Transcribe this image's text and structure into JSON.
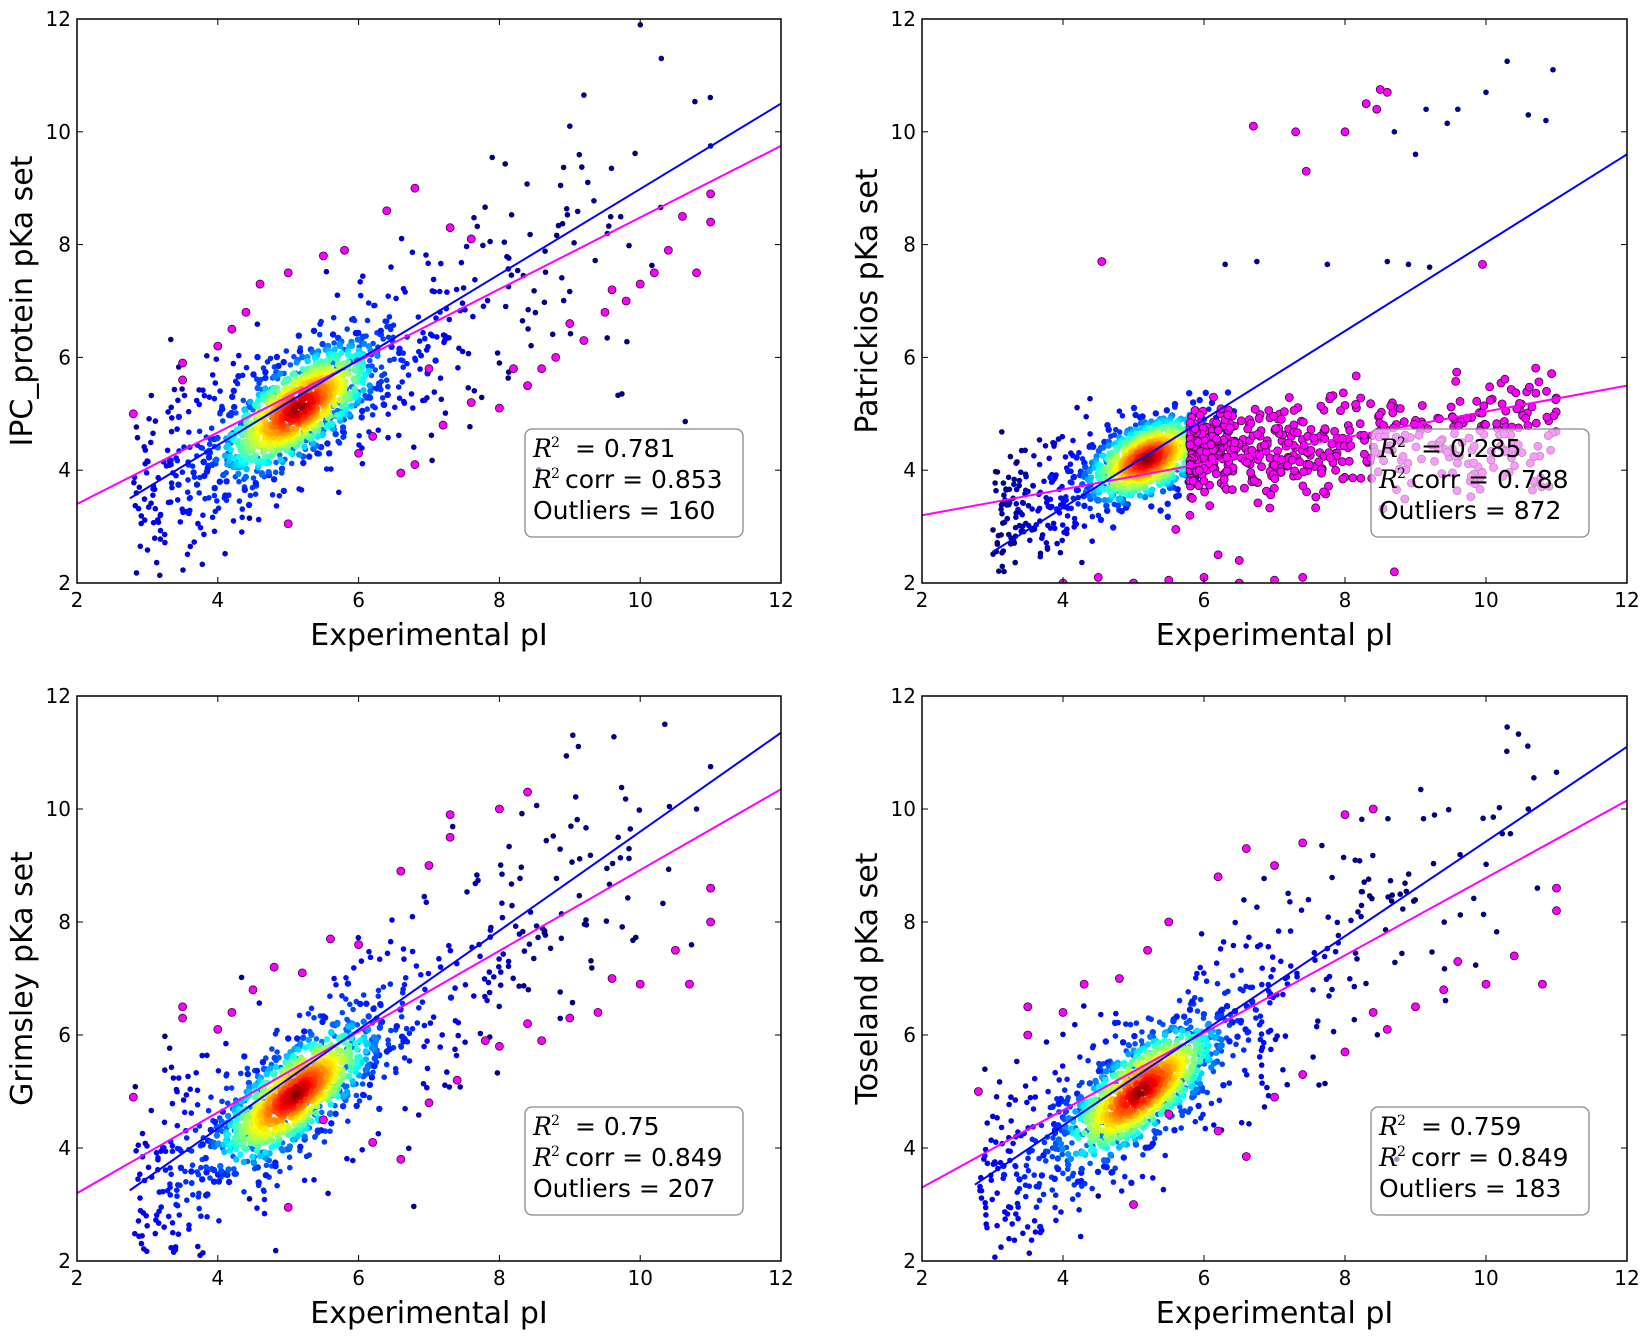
{
  "chart_data": [
    {
      "type": "scatter",
      "panel": "top-left",
      "title": "",
      "xlabel": "Experimental pI",
      "ylabel": "IPC_protein pKa set",
      "xlim": [
        2,
        12
      ],
      "ylim": [
        2,
        12
      ],
      "xticks": [
        "2",
        "4",
        "6",
        "8",
        "10",
        "12"
      ],
      "yticks": [
        "2",
        "4",
        "6",
        "8",
        "10",
        "12"
      ],
      "grid": false,
      "legend_placement": "bottom-right",
      "stats": {
        "r2_label": "= 0.781",
        "r2corr_label": "corr = 0.853",
        "outliers_label": "Outliers = 160"
      },
      "fit_all": {
        "color": "#ff00ff",
        "x": [
          2,
          12
        ],
        "y": [
          3.4,
          9.75
        ]
      },
      "fit_corr": {
        "color": "#0000ff",
        "x": [
          2.75,
          12
        ],
        "y": [
          3.5,
          10.5
        ]
      },
      "cloud": {
        "center": [
          5.15,
          5.1
        ],
        "slope": 0.72,
        "spread_core": 0.45,
        "spread_wide": 1.1,
        "n_core": 900,
        "n_wide": 600,
        "x_range": [
          2.8,
          11
        ]
      },
      "outliers": {
        "count": 160,
        "points": [
          [
            2.8,
            5.0
          ],
          [
            3.5,
            5.9
          ],
          [
            3.5,
            5.6
          ],
          [
            4.0,
            6.2
          ],
          [
            4.2,
            6.5
          ],
          [
            4.4,
            6.8
          ],
          [
            4.6,
            7.3
          ],
          [
            5.0,
            7.5
          ],
          [
            5.5,
            7.8
          ],
          [
            5.8,
            7.9
          ],
          [
            6.4,
            8.6
          ],
          [
            6.8,
            9.0
          ],
          [
            7.3,
            8.3
          ],
          [
            7.6,
            8.1
          ],
          [
            5.0,
            3.05
          ],
          [
            6.0,
            4.3
          ],
          [
            6.6,
            3.95
          ],
          [
            6.8,
            4.1
          ],
          [
            7.2,
            4.8
          ],
          [
            7.6,
            5.2
          ],
          [
            8.0,
            5.1
          ],
          [
            8.4,
            5.5
          ],
          [
            8.8,
            6.0
          ],
          [
            9.2,
            6.3
          ],
          [
            9.5,
            6.8
          ],
          [
            9.8,
            7.0
          ],
          [
            10.2,
            7.5
          ],
          [
            10.4,
            7.9
          ],
          [
            10.6,
            8.5
          ],
          [
            10.8,
            7.5
          ],
          [
            11.0,
            8.9
          ],
          [
            11.0,
            8.4
          ],
          [
            8.2,
            5.8
          ],
          [
            8.6,
            5.8
          ],
          [
            9.0,
            6.6
          ],
          [
            9.6,
            7.2
          ],
          [
            10.0,
            7.3
          ],
          [
            7.0,
            5.8
          ],
          [
            6.2,
            4.6
          ]
        ]
      },
      "corr_extremes": [
        [
          10.3,
          11.3
        ],
        [
          9.0,
          10.1
        ],
        [
          11.0,
          9.75
        ],
        [
          4.45,
          3.15
        ]
      ]
    },
    {
      "type": "scatter",
      "panel": "top-right",
      "title": "",
      "xlabel": "Experimental pI",
      "ylabel": "Patrickios pKa set",
      "xlim": [
        2,
        12
      ],
      "ylim": [
        2,
        12
      ],
      "xticks": [
        "2",
        "4",
        "6",
        "8",
        "10",
        "12"
      ],
      "yticks": [
        "2",
        "4",
        "6",
        "8",
        "10",
        "12"
      ],
      "grid": false,
      "legend_placement": "bottom-right",
      "stats": {
        "r2_label": "= 0.285",
        "r2corr_label": "corr = 0.788",
        "outliers_label": "Outliers = 872"
      },
      "fit_all": {
        "color": "#ff00ff",
        "x": [
          2,
          12
        ],
        "y": [
          3.2,
          5.5
        ]
      },
      "fit_corr": {
        "color": "#0000ff",
        "x": [
          3.0,
          12
        ],
        "y": [
          2.55,
          9.6
        ]
      },
      "cloud": {
        "center": [
          5.2,
          4.2
        ],
        "slope": 0.45,
        "spread_core": 0.35,
        "spread_wide": 0.75,
        "n_core": 900,
        "n_wide": 250,
        "x_range": [
          3.0,
          6.2
        ]
      },
      "outliers": {
        "count": 872,
        "band": {
          "x_range": [
            5.8,
            11
          ],
          "y_center": 4.3,
          "y_spread": 0.35
        },
        "points": [
          [
            4.55,
            7.7
          ],
          [
            6.7,
            10.1
          ],
          [
            7.3,
            10.0
          ],
          [
            7.45,
            9.3
          ],
          [
            8.0,
            10.0
          ],
          [
            8.3,
            10.5
          ],
          [
            8.45,
            10.4
          ],
          [
            8.5,
            10.75
          ],
          [
            8.6,
            10.7
          ],
          [
            9.95,
            7.65
          ],
          [
            8.7,
            2.2
          ],
          [
            4.0,
            2.0
          ],
          [
            4.5,
            2.1
          ],
          [
            5.0,
            2.0
          ],
          [
            5.5,
            2.05
          ],
          [
            6.0,
            2.1
          ],
          [
            6.5,
            2.0
          ],
          [
            7.0,
            2.05
          ],
          [
            7.4,
            2.1
          ],
          [
            5.6,
            2.95
          ],
          [
            5.8,
            3.2
          ],
          [
            6.2,
            2.5
          ],
          [
            6.5,
            2.4
          ]
        ]
      },
      "corr_extremes": [
        [
          10.3,
          11.25
        ],
        [
          10.95,
          11.1
        ],
        [
          10.85,
          10.2
        ],
        [
          10.6,
          10.3
        ],
        [
          10.0,
          10.7
        ],
        [
          9.6,
          10.4
        ],
        [
          9.15,
          10.4
        ],
        [
          9.45,
          10.15
        ],
        [
          9.0,
          9.6
        ],
        [
          8.7,
          10.0
        ],
        [
          6.3,
          7.65
        ],
        [
          6.75,
          7.7
        ],
        [
          7.75,
          7.65
        ],
        [
          8.6,
          7.7
        ],
        [
          9.2,
          7.6
        ],
        [
          8.9,
          7.65
        ]
      ]
    },
    {
      "type": "scatter",
      "panel": "bottom-left",
      "title": "",
      "xlabel": "Experimental pI",
      "ylabel": "Grimsley pKa set",
      "xlim": [
        2,
        12
      ],
      "ylim": [
        2,
        12
      ],
      "xticks": [
        "2",
        "4",
        "6",
        "8",
        "10",
        "12"
      ],
      "yticks": [
        "2",
        "4",
        "6",
        "8",
        "10",
        "12"
      ],
      "grid": false,
      "legend_placement": "bottom-right",
      "stats": {
        "r2_label": "= 0.75",
        "r2corr_label": "corr = 0.849",
        "outliers_label": "Outliers = 207"
      },
      "fit_all": {
        "color": "#ff00ff",
        "x": [
          2,
          12
        ],
        "y": [
          3.2,
          10.35
        ]
      },
      "fit_corr": {
        "color": "#0000ff",
        "x": [
          2.75,
          12
        ],
        "y": [
          3.25,
          11.35
        ]
      },
      "cloud": {
        "center": [
          5.1,
          4.95
        ],
        "slope": 0.85,
        "spread_core": 0.45,
        "spread_wide": 1.2,
        "n_core": 900,
        "n_wide": 600,
        "x_range": [
          2.8,
          11
        ]
      },
      "outliers": {
        "count": 207,
        "points": [
          [
            2.8,
            4.9
          ],
          [
            3.5,
            6.3
          ],
          [
            3.5,
            6.5
          ],
          [
            4.0,
            6.1
          ],
          [
            4.2,
            6.4
          ],
          [
            4.5,
            6.8
          ],
          [
            4.8,
            7.2
          ],
          [
            5.2,
            7.1
          ],
          [
            5.6,
            7.7
          ],
          [
            6.0,
            7.6
          ],
          [
            6.6,
            8.9
          ],
          [
            7.0,
            9.0
          ],
          [
            7.3,
            9.5
          ],
          [
            7.3,
            9.9
          ],
          [
            8.0,
            10.0
          ],
          [
            8.4,
            10.3
          ],
          [
            5.0,
            2.95
          ],
          [
            5.5,
            4.5
          ],
          [
            6.2,
            4.1
          ],
          [
            6.6,
            3.8
          ],
          [
            7.0,
            4.8
          ],
          [
            7.4,
            5.2
          ],
          [
            8.0,
            5.8
          ],
          [
            8.6,
            5.9
          ],
          [
            9.0,
            6.3
          ],
          [
            9.4,
            6.4
          ],
          [
            10.0,
            6.9
          ],
          [
            10.5,
            7.5
          ],
          [
            10.7,
            6.9
          ],
          [
            11.0,
            8.0
          ],
          [
            11.0,
            8.6
          ],
          [
            9.6,
            7.0
          ],
          [
            8.4,
            6.2
          ],
          [
            7.8,
            5.9
          ]
        ]
      },
      "corr_extremes": [
        [
          10.35,
          11.5
        ],
        [
          11.0,
          10.75
        ],
        [
          10.8,
          10.0
        ],
        [
          4.45,
          3.1
        ]
      ]
    },
    {
      "type": "scatter",
      "panel": "bottom-right",
      "title": "",
      "xlabel": "Experimental pI",
      "ylabel": "Toseland pKa set",
      "xlim": [
        2,
        12
      ],
      "ylim": [
        2,
        12
      ],
      "xticks": [
        "2",
        "4",
        "6",
        "8",
        "10",
        "12"
      ],
      "yticks": [
        "2",
        "4",
        "6",
        "8",
        "10",
        "12"
      ],
      "grid": false,
      "legend_placement": "bottom-right",
      "stats": {
        "r2_label": "= 0.759",
        "r2corr_label": "corr = 0.849",
        "outliers_label": "Outliers = 183"
      },
      "fit_all": {
        "color": "#ff00ff",
        "x": [
          2,
          12
        ],
        "y": [
          3.3,
          10.15
        ]
      },
      "fit_corr": {
        "color": "#0000ff",
        "x": [
          2.75,
          12
        ],
        "y": [
          3.35,
          11.1
        ]
      },
      "cloud": {
        "center": [
          5.1,
          5.0
        ],
        "slope": 0.82,
        "spread_core": 0.45,
        "spread_wide": 1.15,
        "n_core": 900,
        "n_wide": 600,
        "x_range": [
          2.8,
          11
        ]
      },
      "outliers": {
        "count": 183,
        "points": [
          [
            2.8,
            5.0
          ],
          [
            3.5,
            6.0
          ],
          [
            3.5,
            6.5
          ],
          [
            4.0,
            6.4
          ],
          [
            4.3,
            6.9
          ],
          [
            4.8,
            7.0
          ],
          [
            5.2,
            7.5
          ],
          [
            5.5,
            8.0
          ],
          [
            6.2,
            8.8
          ],
          [
            6.6,
            9.3
          ],
          [
            7.0,
            9.0
          ],
          [
            7.4,
            9.4
          ],
          [
            8.0,
            9.9
          ],
          [
            8.4,
            10.0
          ],
          [
            5.0,
            3.0
          ],
          [
            5.5,
            4.6
          ],
          [
            6.2,
            4.3
          ],
          [
            6.6,
            3.85
          ],
          [
            7.0,
            4.9
          ],
          [
            7.4,
            5.3
          ],
          [
            8.0,
            5.7
          ],
          [
            8.6,
            6.1
          ],
          [
            9.0,
            6.5
          ],
          [
            9.4,
            6.8
          ],
          [
            10.0,
            6.9
          ],
          [
            10.4,
            7.4
          ],
          [
            10.8,
            6.9
          ],
          [
            11.0,
            8.2
          ],
          [
            11.0,
            8.6
          ],
          [
            9.6,
            7.3
          ],
          [
            8.4,
            6.4
          ]
        ]
      },
      "corr_extremes": [
        [
          10.3,
          11.45
        ],
        [
          11.0,
          10.65
        ],
        [
          10.6,
          10.0
        ],
        [
          4.5,
          3.15
        ]
      ]
    }
  ]
}
